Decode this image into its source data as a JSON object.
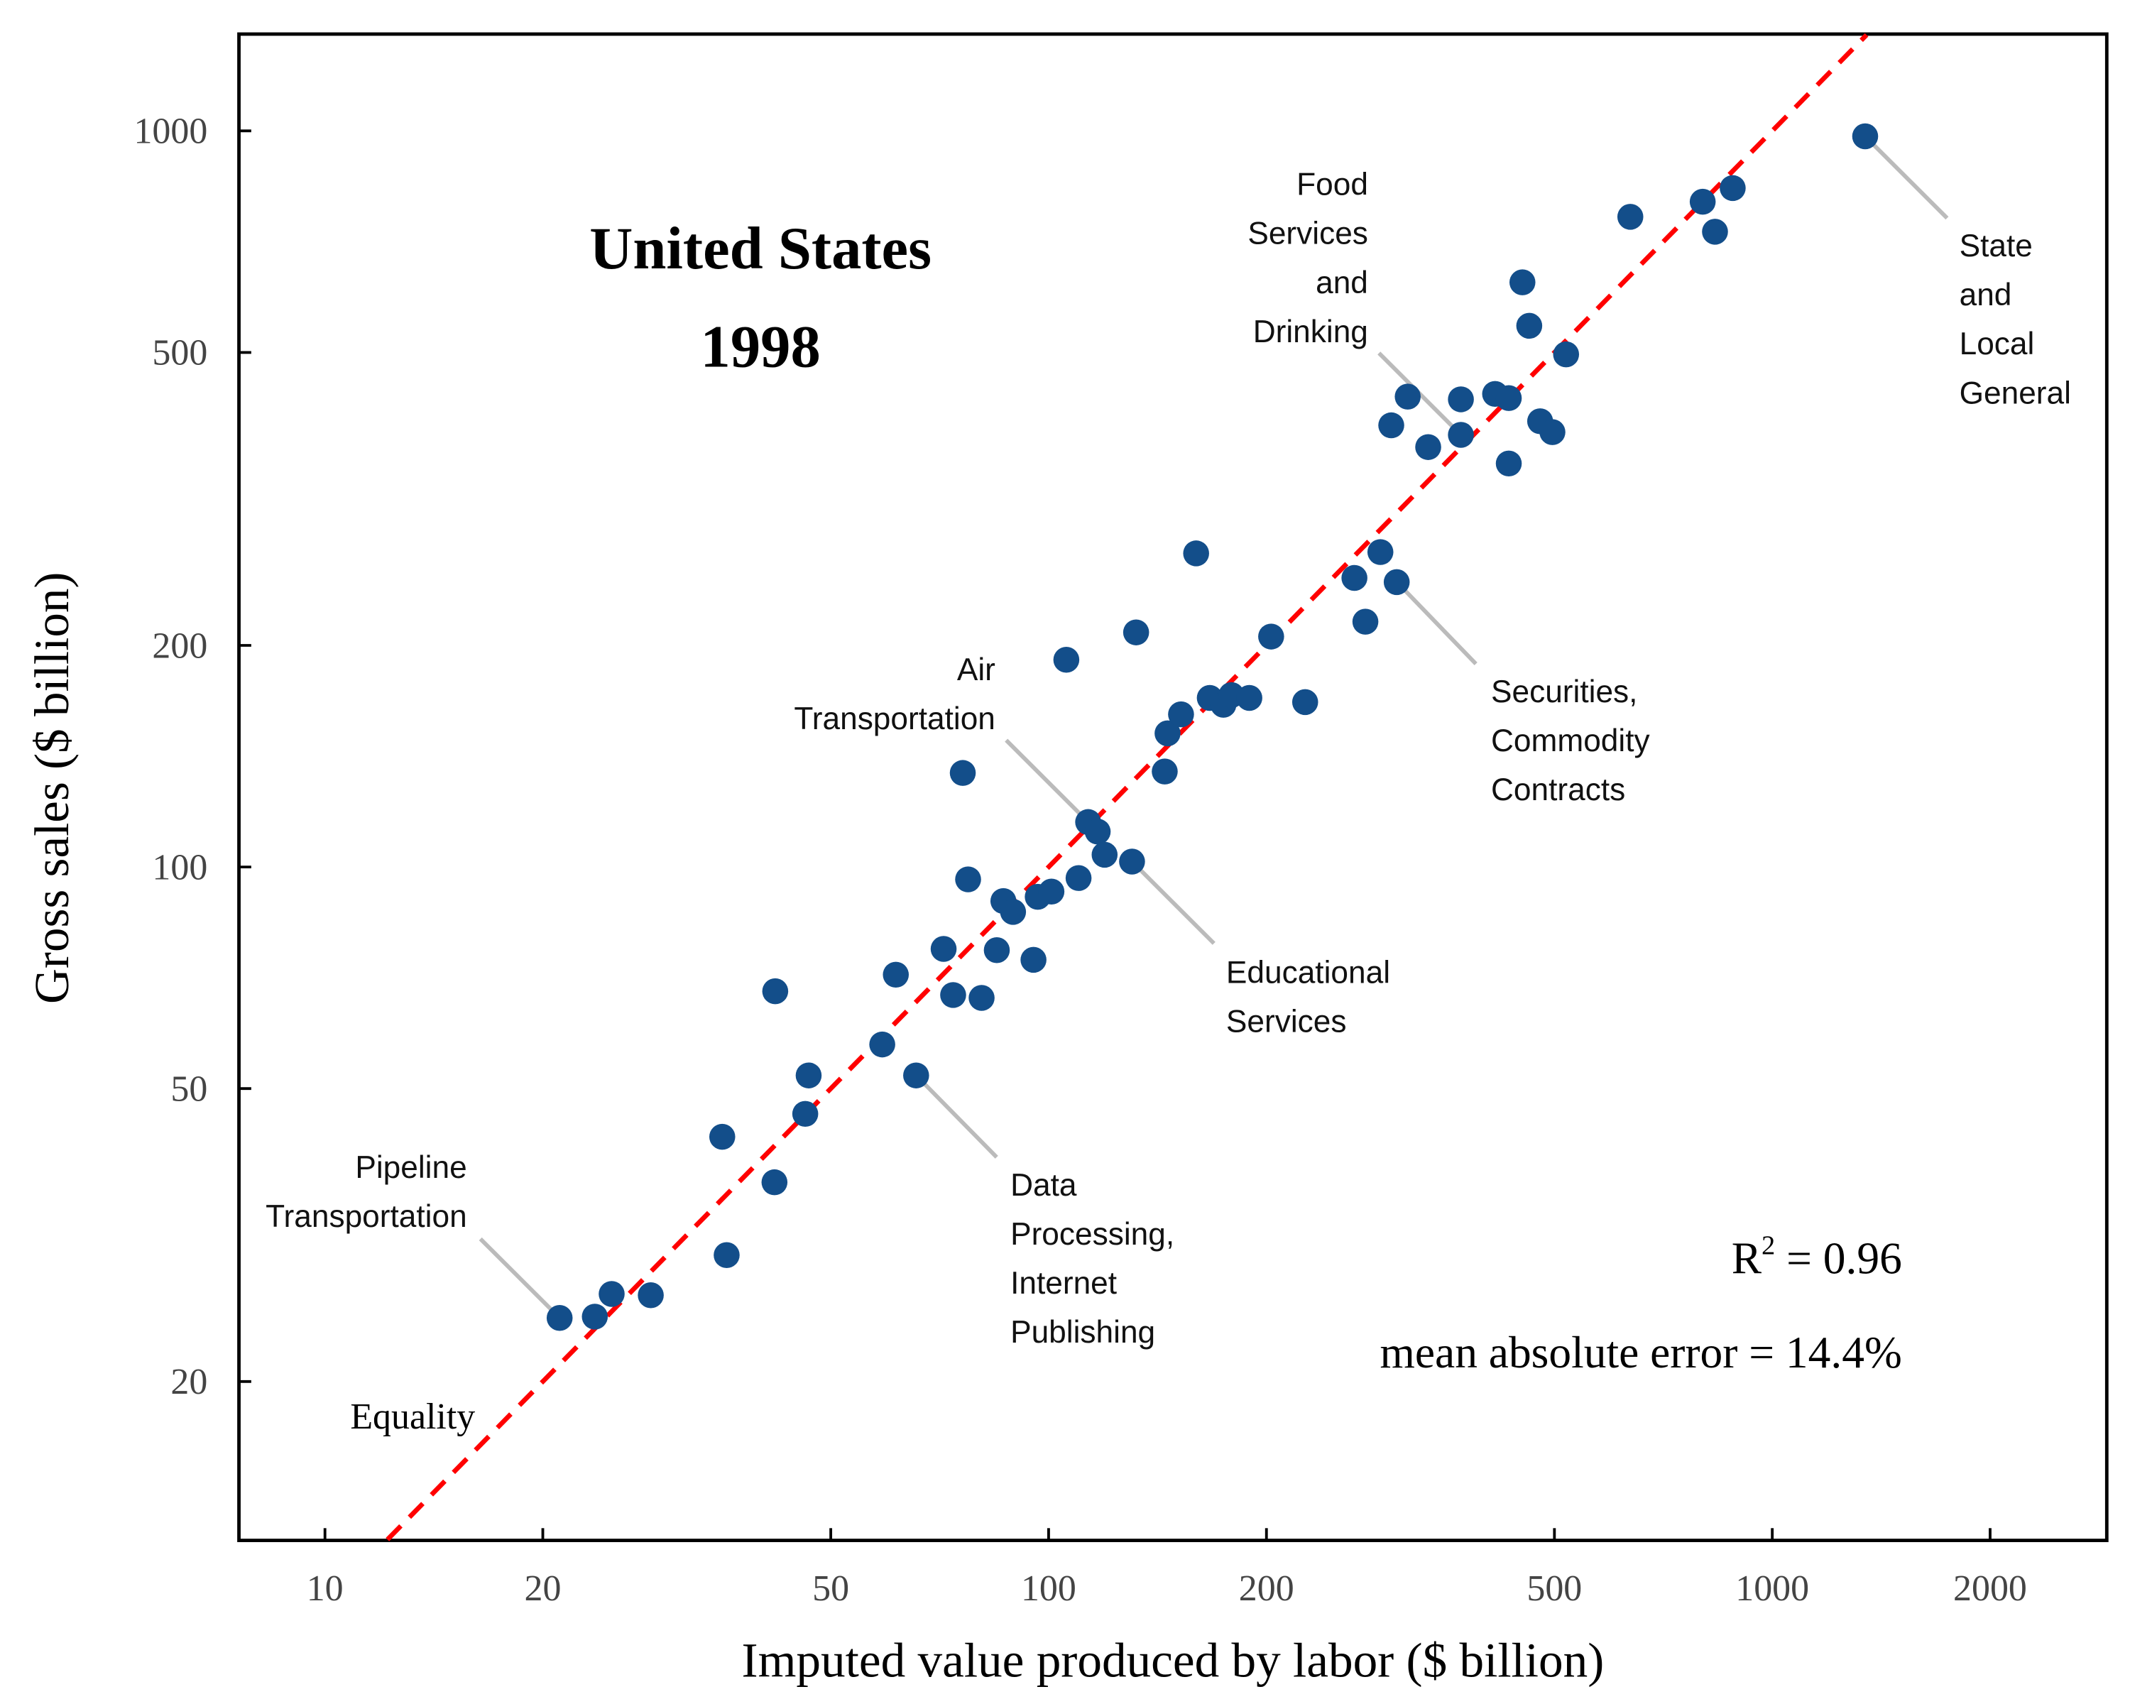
{
  "chart_data": {
    "type": "scatter",
    "title": "United States",
    "subtitle": "1998",
    "xlabel": "Imputed value produced by labor ($ billion)",
    "ylabel": "Gross sales ($ billion)",
    "xscale": "log",
    "yscale": "log",
    "xlim": [
      7.6,
      2900
    ],
    "ylim": [
      12.2,
      1350
    ],
    "xticks": [
      10,
      20,
      50,
      100,
      200,
      500,
      1000,
      2000
    ],
    "xtick_labels": [
      "10",
      "20",
      "50",
      "100",
      "200",
      "500",
      "1000",
      "2000"
    ],
    "yticks": [
      20,
      50,
      100,
      200,
      500,
      1000
    ],
    "ytick_labels": [
      "20",
      "50",
      "100",
      "200",
      "500",
      "1000"
    ],
    "grid": false,
    "point_color": "#134e8a",
    "reference_line": {
      "label": "Equality",
      "color": "#ff0000",
      "style": "dashed"
    },
    "stats": {
      "r2_label": "R",
      "r2_sup": "2",
      "r2_value": " = 0.96",
      "mae": "mean absolute error = 14.4%"
    },
    "points": [
      [
        21.1,
        24.4
      ],
      [
        23.6,
        24.5
      ],
      [
        24.9,
        26.3
      ],
      [
        28.2,
        26.2
      ],
      [
        35.4,
        43.0
      ],
      [
        35.9,
        29.7
      ],
      [
        41.8,
        37.3
      ],
      [
        41.9,
        67.8
      ],
      [
        46.1,
        46.2
      ],
      [
        46.6,
        52.1
      ],
      [
        58.9,
        57.4
      ],
      [
        61.5,
        71.4
      ],
      [
        65.6,
        52.1
      ],
      [
        71.6,
        77.4
      ],
      [
        73.8,
        67.0
      ],
      [
        76.1,
        134.2
      ],
      [
        77.4,
        96.2
      ],
      [
        80.8,
        66.4
      ],
      [
        84.8,
        77.1
      ],
      [
        86.6,
        89.9
      ],
      [
        89.3,
        86.9
      ],
      [
        95.3,
        74.8
      ],
      [
        96.6,
        91.1
      ],
      [
        100.9,
        92.6
      ],
      [
        105.8,
        191.2
      ],
      [
        110.0,
        96.6
      ],
      [
        113.4,
        115.1
      ],
      [
        116.9,
        111.7
      ],
      [
        119.5,
        103.9
      ],
      [
        130.4,
        101.7
      ],
      [
        132.1,
        208.3
      ],
      [
        144.7,
        134.8
      ],
      [
        146.0,
        151.9
      ],
      [
        152.4,
        161.2
      ],
      [
        159.9,
        266.7
      ],
      [
        167.0,
        169.7
      ],
      [
        174.4,
        166.1
      ],
      [
        178.9,
        171.2
      ],
      [
        189.4,
        169.7
      ],
      [
        203.0,
        205.6
      ],
      [
        226.2,
        167.5
      ],
      [
        264.6,
        247.0
      ],
      [
        274.0,
        215.4
      ],
      [
        287.4,
        267.8
      ],
      [
        302.7,
        243.8
      ],
      [
        297.5,
        398.1
      ],
      [
        313.5,
        435.5
      ],
      [
        334.6,
        371.9
      ],
      [
        371.3,
        386.4
      ],
      [
        371.3,
        431.8
      ],
      [
        414.0,
        439.2
      ],
      [
        432.4,
        433.5
      ],
      [
        432.4,
        353.3
      ],
      [
        451.6,
        622.7
      ],
      [
        461.5,
        543.5
      ],
      [
        477.8,
        403.2
      ],
      [
        496.8,
        389.7
      ],
      [
        518.9,
        497.0
      ],
      [
        636.6,
        764.2
      ],
      [
        801.4,
        801.2
      ],
      [
        833.4,
        729.4
      ],
      [
        881.7,
        836.1
      ],
      [
        1343.9,
        983.1
      ]
    ],
    "annotations": [
      {
        "lines": [
          "Food",
          "Services",
          "and",
          "Drinking"
        ],
        "point": [
          371.3,
          386.4
        ]
      },
      {
        "lines": [
          "State",
          "and",
          "Local",
          "General"
        ],
        "point": [
          1343.9,
          983.1
        ]
      },
      {
        "lines": [
          "Securities,",
          "Commodity",
          "Contracts"
        ],
        "point": [
          302.7,
          243.8
        ]
      },
      {
        "lines": [
          "Air",
          "Transportation"
        ],
        "point": [
          113.4,
          115.1
        ]
      },
      {
        "lines": [
          "Educational",
          "Services"
        ],
        "point": [
          130.4,
          101.7
        ]
      },
      {
        "lines": [
          "Data",
          "Processing,",
          "Internet",
          "Publishing"
        ],
        "point": [
          65.6,
          52.1
        ]
      },
      {
        "lines": [
          "Pipeline",
          "Transportation"
        ],
        "point": [
          21.1,
          24.4
        ]
      }
    ]
  }
}
